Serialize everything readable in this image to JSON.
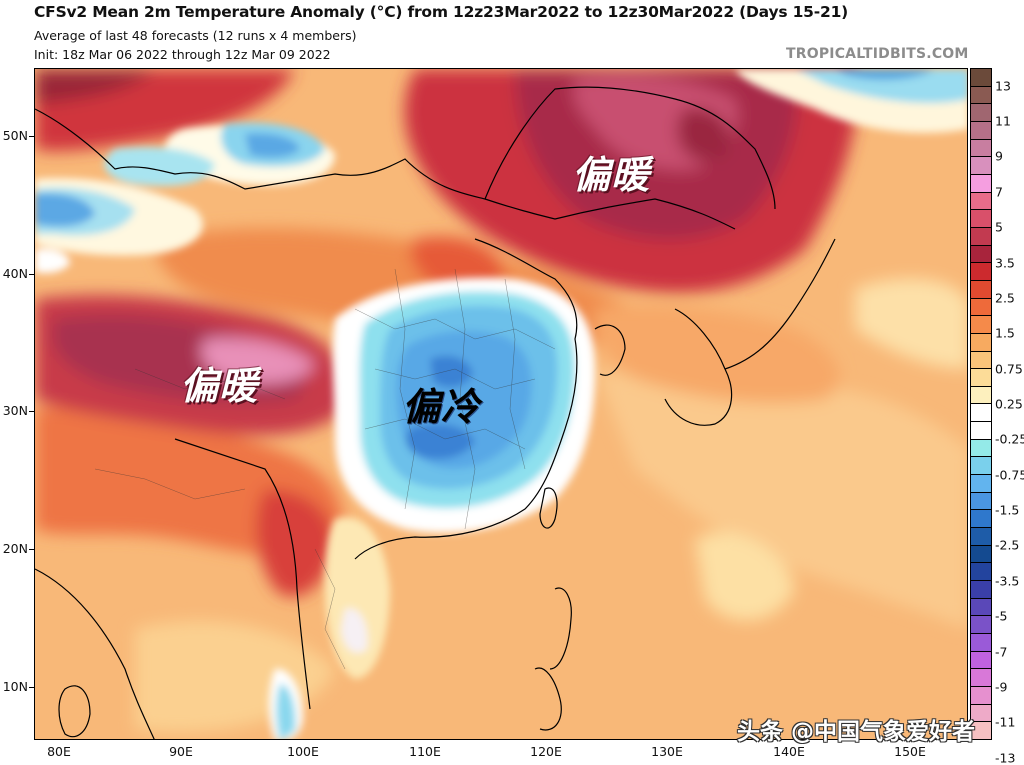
{
  "header": {
    "title": "CFSv2 Mean 2m Temperature Anomaly (°C) from 12z23Mar2022 to 12z30Mar2022 (Days 15-21)",
    "subtitle_1": "Average of last 48 forecasts (12 runs x 4 members)",
    "subtitle_2": "Init: 18z Mar 06 2022 through 12z Mar 09 2022",
    "site": "TROPICALTIDBITS.COM"
  },
  "map": {
    "y_axis_labels": [
      "50N",
      "40N",
      "30N",
      "20N",
      "10N"
    ],
    "x_axis_labels": [
      "80E",
      "90E",
      "100E",
      "110E",
      "120E",
      "130E",
      "140E",
      "150E"
    ],
    "region": "East Asia / Western Pacific",
    "annotations": {
      "warm_north": "偏暖",
      "warm_west": "偏暖",
      "cold_central": "偏冷"
    },
    "credit": "头条 @中国气象爱好者"
  },
  "colorbar": {
    "unit": "°C",
    "labels": [
      "13",
      "11",
      "9",
      "7",
      "5",
      "3.5",
      "2.5",
      "1.5",
      "0.75",
      "0.25",
      "-0.25",
      "-0.75",
      "-1.5",
      "-2.5",
      "-3.5",
      "-5",
      "-7",
      "-9",
      "-11",
      "-13"
    ],
    "colors": [
      "#6b4a3a",
      "#8a5a52",
      "#a06670",
      "#b57088",
      "#c87ea0",
      "#d890bd",
      "#f59ee0",
      "#e86c8a",
      "#d9506a",
      "#c23a50",
      "#a8243c",
      "#cc2a2e",
      "#e04a30",
      "#ee6a3a",
      "#f58a4a",
      "#f7aa60",
      "#fac47a",
      "#fcdc98",
      "#fdf0be",
      "#ffffff",
      "#ffffff",
      "#94eae8",
      "#7ad0ec",
      "#62b4ee",
      "#4a96e2",
      "#2f78cc",
      "#1e5ca8",
      "#144a90",
      "#23449e",
      "#3a3fa8",
      "#5a48b8",
      "#7a52c8",
      "#9a5ad8",
      "#c062e0",
      "#d878d8",
      "#e690cf",
      "#eeaac8",
      "#f6c0c2"
    ]
  }
}
